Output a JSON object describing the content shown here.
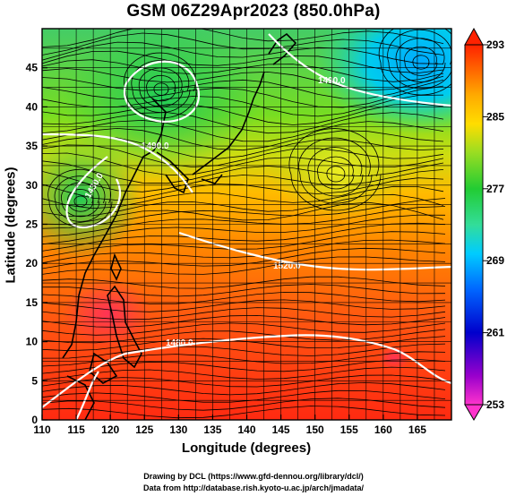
{
  "title": "GSM 06Z29Apr2023 (850.0hPa)",
  "x_axis": {
    "label": "Longitude (degrees)",
    "range": [
      110,
      170
    ],
    "ticks": [
      "110",
      "115",
      "120",
      "125",
      "130",
      "135",
      "140",
      "145",
      "150",
      "155",
      "160",
      "165"
    ]
  },
  "y_axis": {
    "label": "Latitude  (degrees)",
    "range": [
      0,
      50
    ],
    "ticks": [
      "0",
      "5",
      "10",
      "15",
      "20",
      "25",
      "30",
      "35",
      "40",
      "45"
    ]
  },
  "colorbar": {
    "ticks": [
      "293",
      "285",
      "277",
      "269",
      "261",
      "253"
    ],
    "range": [
      253,
      293
    ],
    "colors": [
      "#ff33cc",
      "#9900cc",
      "#0000cc",
      "#0066ff",
      "#00ccff",
      "#33dd99",
      "#22cc33",
      "#99dd22",
      "#ffdd00",
      "#ffaa00",
      "#ff6600",
      "#ff2200"
    ]
  },
  "contours": {
    "labels": [
      "1490.0",
      "1490.0",
      "1430.0",
      "1520.0",
      "1480.0"
    ]
  },
  "credits": {
    "line1": "Drawing by DCL (https://www.gfd-dennou.org/library/dcl/)",
    "line2": "Data from http://database.rish.kyoto-u.ac.jp/arch/jmadata/"
  }
}
